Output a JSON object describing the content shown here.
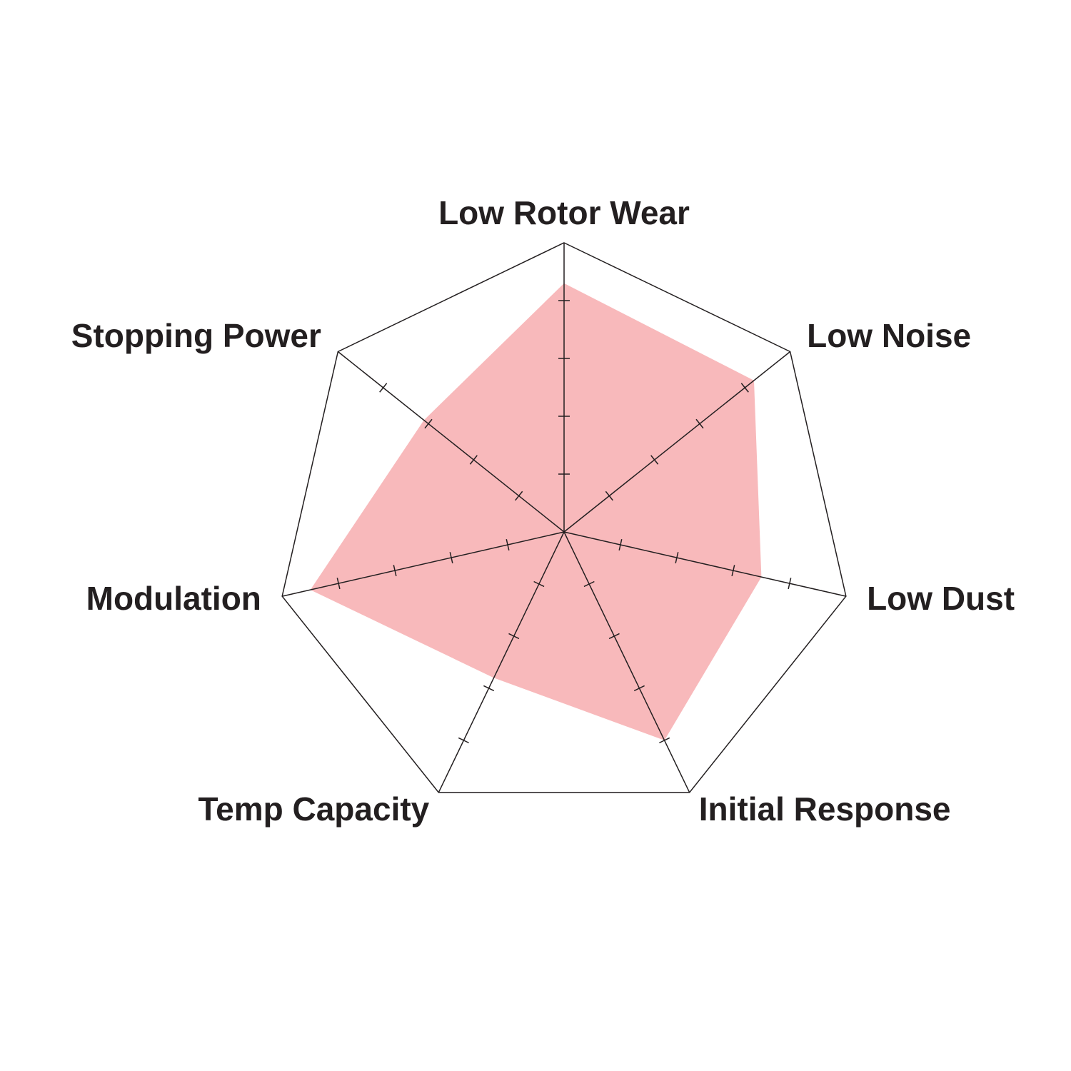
{
  "chart_data": {
    "type": "radar",
    "categories": [
      "Low Rotor Wear",
      "Low Noise",
      "Low Dust",
      "Initial Response",
      "Temp Capacity",
      "Modulation",
      "Stopping Power"
    ],
    "values": [
      4.3,
      4.2,
      3.5,
      4.0,
      2.8,
      4.5,
      3.1
    ],
    "color": "#f8b9bb",
    "rlim": [
      0,
      5
    ],
    "rticks": [
      1,
      2,
      3,
      4
    ]
  }
}
